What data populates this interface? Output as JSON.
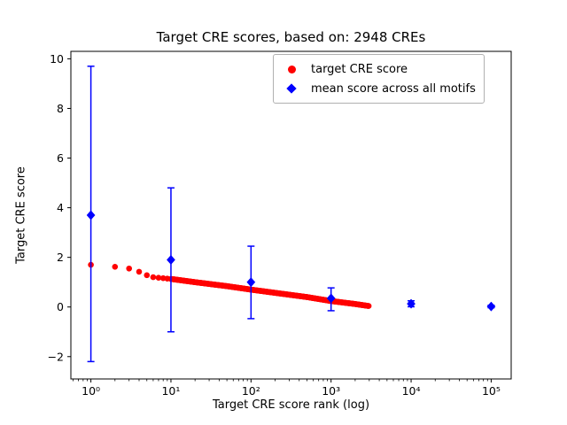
{
  "figure": {
    "title": "Target CRE scores, based on: 2948 CREs",
    "xlabel": "Target CRE score rank (log)",
    "ylabel": "Target CRE score",
    "background": "#ffffff"
  },
  "legend": {
    "items": [
      {
        "label": "target CRE score",
        "marker": "circle",
        "color": "#ff0000"
      },
      {
        "label": "mean score across all motifs",
        "marker": "diamond",
        "color": "#0000ff"
      }
    ]
  },
  "chart_data": {
    "type": "scatter",
    "title": "Target CRE scores, based on: 2948 CREs",
    "xlabel": "Target CRE score rank (log)",
    "ylabel": "Target CRE score",
    "x_scale": "log",
    "grid": false,
    "legend_position": "upper right",
    "xlim": [
      0.5623,
      177828
    ],
    "ylim": [
      -2.9,
      10.3
    ],
    "x_ticks": [
      {
        "value": 1,
        "label": "10⁰"
      },
      {
        "value": 10,
        "label": "10¹"
      },
      {
        "value": 100,
        "label": "10²"
      },
      {
        "value": 1000,
        "label": "10³"
      },
      {
        "value": 10000,
        "label": "10⁴"
      },
      {
        "value": 100000,
        "label": "10⁵"
      }
    ],
    "y_ticks": [
      {
        "value": -2,
        "label": "−2"
      },
      {
        "value": 0,
        "label": "0"
      },
      {
        "value": 2,
        "label": "2"
      },
      {
        "value": 4,
        "label": "4"
      },
      {
        "value": 6,
        "label": "6"
      },
      {
        "value": 8,
        "label": "8"
      },
      {
        "value": 10,
        "label": "10"
      }
    ],
    "series": [
      {
        "name": "target CRE score",
        "type": "scatter",
        "marker": "circle",
        "color": "#ff0000",
        "n_points": 2948,
        "rank_range": [
          1,
          2948
        ],
        "anchors": [
          [
            1,
            1.7
          ],
          [
            2,
            1.62
          ],
          [
            3,
            1.55
          ],
          [
            4,
            1.42
          ],
          [
            5,
            1.28
          ],
          [
            6,
            1.2
          ],
          [
            8,
            1.16
          ],
          [
            10,
            1.13
          ],
          [
            20,
            1.0
          ],
          [
            50,
            0.84
          ],
          [
            100,
            0.7
          ],
          [
            200,
            0.57
          ],
          [
            500,
            0.4
          ],
          [
            1000,
            0.24
          ],
          [
            2000,
            0.12
          ],
          [
            2948,
            0.04
          ]
        ]
      },
      {
        "name": "mean score across all motifs",
        "type": "errorbar",
        "marker": "diamond",
        "color": "#0000ff",
        "x": [
          1,
          10,
          100,
          1000,
          10000,
          100000
        ],
        "y": [
          3.7,
          1.9,
          1.0,
          0.35,
          0.13,
          0.02
        ],
        "err_low": [
          5.9,
          2.9,
          1.47,
          0.5,
          0.12,
          0.05
        ],
        "err_high": [
          6.0,
          2.9,
          1.45,
          0.42,
          0.12,
          0.05
        ]
      }
    ]
  }
}
